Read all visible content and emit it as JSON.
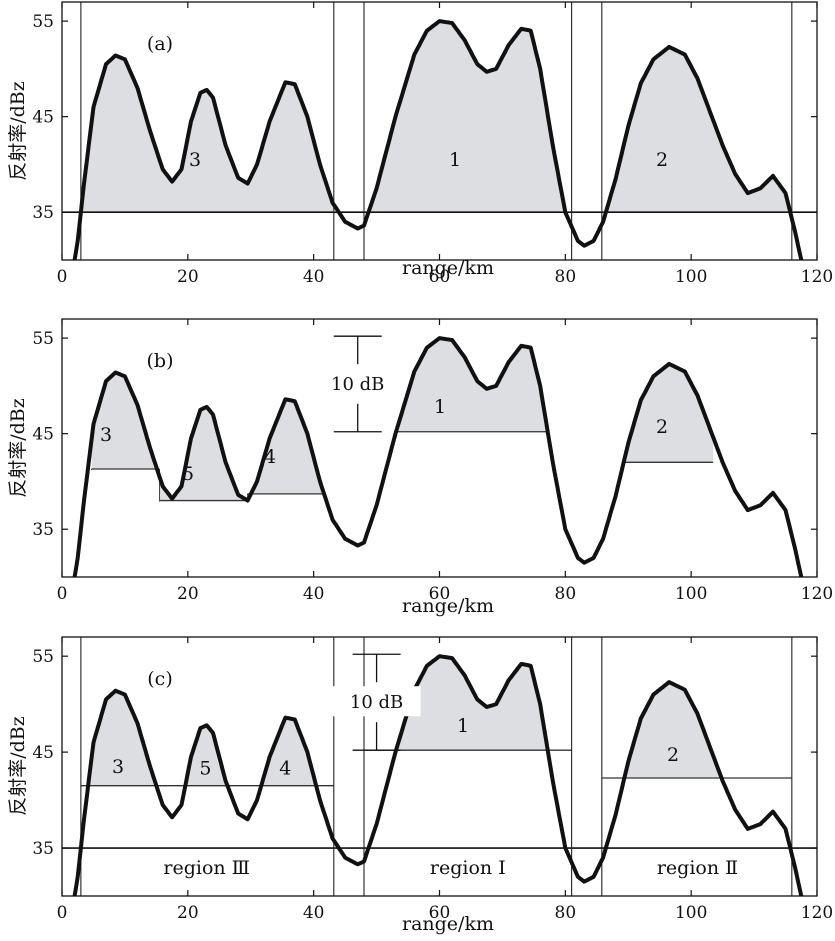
{
  "chart_data": [
    {
      "type": "line",
      "panel_label": "(a)",
      "xlabel": "range/km",
      "ylabel": "反射率/dBz",
      "xlim": [
        0,
        120
      ],
      "ylim": [
        30,
        57
      ],
      "x_ticks": [
        "0",
        "20",
        "40",
        "60",
        "80",
        "100",
        "120"
      ],
      "y_ticks": [
        "35",
        "45",
        "55"
      ],
      "series": [
        {
          "x": [
            2.0,
            2.5,
            3.5,
            5,
            7,
            8.5,
            10,
            12,
            14,
            16,
            17.5,
            19,
            20.5,
            22,
            23,
            24,
            26,
            28,
            29.5,
            31,
            33,
            35.5,
            37,
            39,
            41,
            43,
            45,
            47,
            48,
            50,
            53,
            56,
            58,
            60,
            62,
            64,
            66,
            67.5,
            69,
            71,
            73,
            74.5,
            76,
            78,
            80,
            82,
            83,
            84.5,
            86,
            88,
            90,
            92,
            94,
            96.5,
            99,
            101,
            103,
            105,
            107,
            109,
            111,
            113,
            115,
            116.5,
            117.5
          ],
          "y": [
            30,
            32,
            38,
            46,
            50.5,
            51.4,
            51,
            48,
            43.5,
            39.5,
            38.2,
            39.5,
            44.5,
            47.5,
            47.8,
            47,
            42,
            38.6,
            38,
            40,
            44.5,
            48.6,
            48.4,
            45,
            40,
            36,
            34,
            33.3,
            33.6,
            37.5,
            45,
            51.5,
            54,
            55,
            54.8,
            53,
            50.5,
            49.7,
            50,
            52.5,
            54.2,
            54,
            50,
            42,
            35,
            32,
            31.5,
            32,
            34,
            38.5,
            44,
            48.5,
            51,
            52.3,
            51.5,
            49,
            45.5,
            42,
            39,
            37,
            37.5,
            38.8,
            37,
            33,
            30
          ]
        }
      ],
      "threshold_lines": [
        35
      ],
      "boundaries": [
        3,
        43.2,
        48,
        81,
        85.8,
        116
      ],
      "cells": [
        {
          "label": "3",
          "from_x": 3,
          "to_x": 43.2,
          "threshold": 35
        },
        {
          "label": "1",
          "from_x": 48,
          "to_x": 81,
          "threshold": 35
        },
        {
          "label": "2",
          "from_x": 85.8,
          "to_x": 116,
          "threshold": 35
        }
      ]
    },
    {
      "type": "line",
      "panel_label": "(b)",
      "xlabel": "range/km",
      "ylabel": "反射率/dBz",
      "xlim": [
        0,
        120
      ],
      "ylim": [
        30,
        57
      ],
      "x_ticks": [
        "0",
        "20",
        "40",
        "60",
        "80",
        "100",
        "120"
      ],
      "y_ticks": [
        "35",
        "45",
        "55"
      ],
      "series": [
        {
          "x": [
            2.0,
            2.5,
            3.5,
            5,
            7,
            8.5,
            10,
            12,
            14,
            16,
            17.5,
            19,
            20.5,
            22,
            23,
            24,
            26,
            28,
            29.5,
            31,
            33,
            35.5,
            37,
            39,
            41,
            43,
            45,
            47,
            48,
            50,
            53,
            56,
            58,
            60,
            62,
            64,
            66,
            67.5,
            69,
            71,
            73,
            74.5,
            76,
            78,
            80,
            82,
            83,
            84.5,
            86,
            88,
            90,
            92,
            94,
            96.5,
            99,
            101,
            103,
            105,
            107,
            109,
            111,
            113,
            115,
            116.5,
            117.5
          ],
          "y": [
            30,
            32,
            38,
            46,
            50.5,
            51.4,
            51,
            48,
            43.5,
            39.5,
            38.2,
            39.5,
            44.5,
            47.5,
            47.8,
            47,
            42,
            38.6,
            38,
            40,
            44.5,
            48.6,
            48.4,
            45,
            40,
            36,
            34,
            33.3,
            33.6,
            37.5,
            45,
            51.5,
            54,
            55,
            54.8,
            53,
            50.5,
            49.7,
            50,
            52.5,
            54.2,
            54,
            50,
            42,
            35,
            32,
            31.5,
            32,
            34,
            38.5,
            44,
            48.5,
            51,
            52.3,
            51.5,
            49,
            45.5,
            42,
            39,
            37,
            37.5,
            38.8,
            37,
            33,
            30
          ]
        }
      ],
      "scale_bar": {
        "text": "10  dB",
        "from_y": 45.2,
        "to_y": 55.2,
        "x": 47
      },
      "cells": [
        {
          "label": "3",
          "from_x": 4.7,
          "to_x": 15.5,
          "threshold": 41.3
        },
        {
          "label": "5",
          "from_x": 15.5,
          "to_x": 29.5,
          "threshold": 38.0
        },
        {
          "label": "4",
          "from_x": 29.5,
          "to_x": 41.5,
          "threshold": 38.7
        },
        {
          "label": "1",
          "from_x": 53,
          "to_x": 77.5,
          "threshold": 45.2
        },
        {
          "label": "2",
          "from_x": 89.5,
          "to_x": 103.5,
          "threshold": 42.0
        }
      ]
    },
    {
      "type": "line",
      "panel_label": "(c)",
      "xlabel": "range/km",
      "ylabel": "反射率/dBz",
      "xlim": [
        0,
        120
      ],
      "ylim": [
        30,
        57
      ],
      "x_ticks": [
        "0",
        "20",
        "40",
        "60",
        "80",
        "100",
        "120"
      ],
      "y_ticks": [
        "35",
        "45",
        "55"
      ],
      "series": [
        {
          "x": [
            2.0,
            2.5,
            3.5,
            5,
            7,
            8.5,
            10,
            12,
            14,
            16,
            17.5,
            19,
            20.5,
            22,
            23,
            24,
            26,
            28,
            29.5,
            31,
            33,
            35.5,
            37,
            39,
            41,
            43,
            45,
            47,
            48,
            50,
            53,
            56,
            58,
            60,
            62,
            64,
            66,
            67.5,
            69,
            71,
            73,
            74.5,
            76,
            78,
            80,
            82,
            83,
            84.5,
            86,
            88,
            90,
            92,
            94,
            96.5,
            99,
            101,
            103,
            105,
            107,
            109,
            111,
            113,
            115,
            116.5,
            117.5
          ],
          "y": [
            30,
            32,
            38,
            46,
            50.5,
            51.4,
            51,
            48,
            43.5,
            39.5,
            38.2,
            39.5,
            44.5,
            47.5,
            47.8,
            47,
            42,
            38.6,
            38,
            40,
            44.5,
            48.6,
            48.4,
            45,
            40,
            36,
            34,
            33.3,
            33.6,
            37.5,
            45,
            51.5,
            54,
            55,
            54.8,
            53,
            50.5,
            49.7,
            50,
            52.5,
            54.2,
            54,
            50,
            42,
            35,
            32,
            31.5,
            32,
            34,
            38.5,
            44,
            48.5,
            51,
            52.3,
            51.5,
            49,
            45.5,
            42,
            39,
            37,
            37.5,
            38.8,
            37,
            33,
            30
          ]
        }
      ],
      "threshold_lines": [
        35
      ],
      "boundaries": [
        3,
        43.2,
        48,
        81,
        85.8,
        116
      ],
      "scale_bar": {
        "text": "10  dB",
        "from_y": 45.2,
        "to_y": 55.2,
        "x": 50
      },
      "cells": [
        {
          "label": "3",
          "from_x": 3,
          "to_x": 43.2,
          "threshold": 41.5
        },
        {
          "label": "1",
          "from_x": 48,
          "to_x": 81,
          "threshold": 45.2
        },
        {
          "label": "2",
          "from_x": 85.8,
          "to_x": 116,
          "threshold": 42.3
        }
      ],
      "extra_labels": [
        {
          "label": "5",
          "x": 22.8,
          "y": 43.3
        },
        {
          "label": "4",
          "x": 35.5,
          "y": 43.3
        }
      ],
      "regions": [
        {
          "label": "region  Ⅲ",
          "x": 23
        },
        {
          "label": "region  Ⅰ",
          "x": 64.5
        },
        {
          "label": "region  Ⅱ",
          "x": 101
        }
      ]
    }
  ]
}
